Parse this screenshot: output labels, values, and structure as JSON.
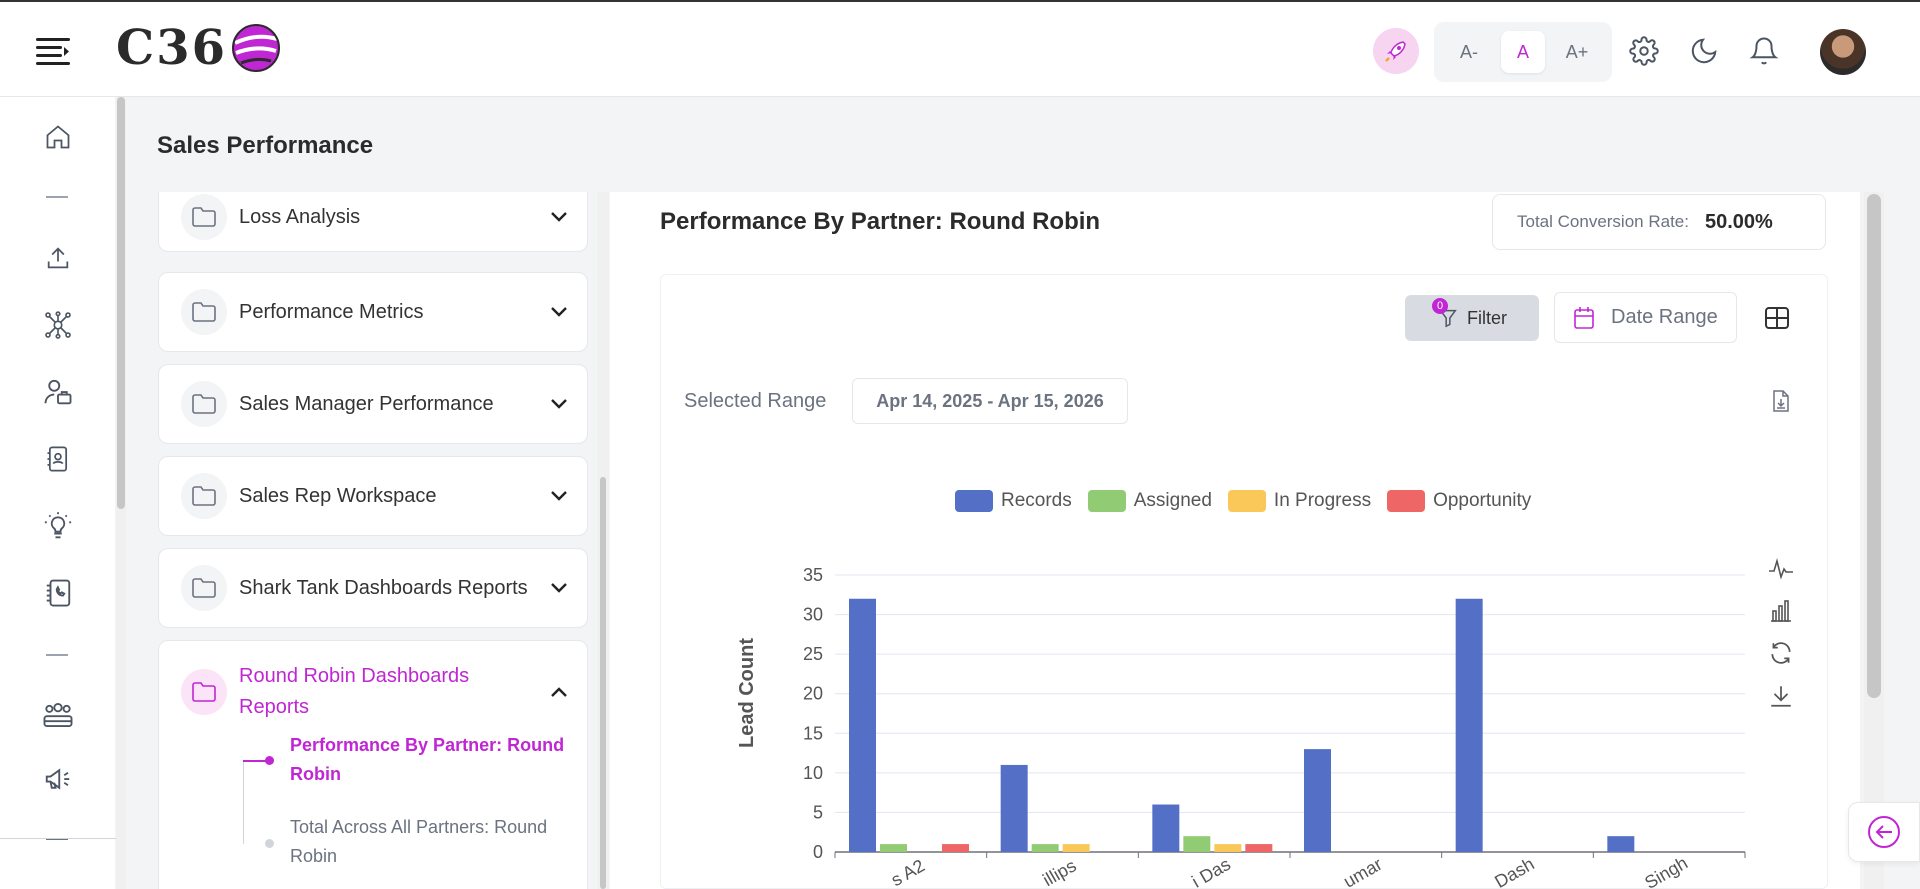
{
  "header": {
    "logo_text": "C36",
    "font_controls": [
      "A-",
      "A",
      "A+"
    ],
    "icons": [
      "rocket-icon",
      "gear-icon",
      "moon-icon",
      "bell-icon"
    ]
  },
  "sidebar": {
    "icons": [
      "home-icon",
      "upload-icon",
      "network-icon",
      "user-group-icon",
      "contact-card-icon",
      "lightbulb-icon",
      "phone-book-icon",
      "team-icon",
      "megaphone-icon"
    ]
  },
  "page": {
    "title": "Sales Performance"
  },
  "folders": {
    "items": [
      {
        "label": "Loss Analysis"
      },
      {
        "label": "Performance Metrics"
      },
      {
        "label": "Sales Manager Performance"
      },
      {
        "label": "Sales Rep Workspace"
      },
      {
        "label": "Shark Tank Dashboards Reports"
      }
    ],
    "open": {
      "label_line1": "Round Robin Dashboards",
      "label_line2": "Reports",
      "sub_items": [
        {
          "line1": "Performance By Partner: Round",
          "line2": "Robin",
          "active": true
        },
        {
          "line1": "Total Across All Partners: Round",
          "line2": "Robin",
          "active": false
        }
      ]
    }
  },
  "report": {
    "title": "Performance By Partner: Round Robin",
    "conversion_label": "Total Conversion Rate:",
    "conversion_value": "50.00%",
    "filter_label": "Filter",
    "filter_count": "0",
    "date_range_label": "Date Range",
    "selected_range_label": "Selected Range",
    "selected_range_value": "Apr 14, 2025 - Apr 15, 2026"
  },
  "colors": {
    "accent": "#c026d3",
    "records": "#5470c6",
    "assigned": "#91cc75",
    "in_progress": "#fac858",
    "opportunity": "#ee6666"
  },
  "chart_data": {
    "type": "bar",
    "ylabel": "Lead Count",
    "ylim": [
      0,
      35
    ],
    "yticks": [
      0,
      5,
      10,
      15,
      20,
      25,
      30,
      35
    ],
    "categories": [
      "s A2",
      "illips",
      "i Das",
      "umar",
      "Dash",
      "Singh"
    ],
    "series": [
      {
        "name": "Records",
        "values": [
          32,
          11,
          6,
          13,
          32,
          2
        ]
      },
      {
        "name": "Assigned",
        "values": [
          1,
          1,
          2,
          0,
          0,
          0
        ]
      },
      {
        "name": "In Progress",
        "values": [
          0,
          1,
          1,
          0,
          0,
          0
        ]
      },
      {
        "name": "Opportunity",
        "values": [
          1,
          0,
          1,
          0,
          0,
          0
        ]
      }
    ],
    "legend_position": "top-center",
    "grid": true
  }
}
